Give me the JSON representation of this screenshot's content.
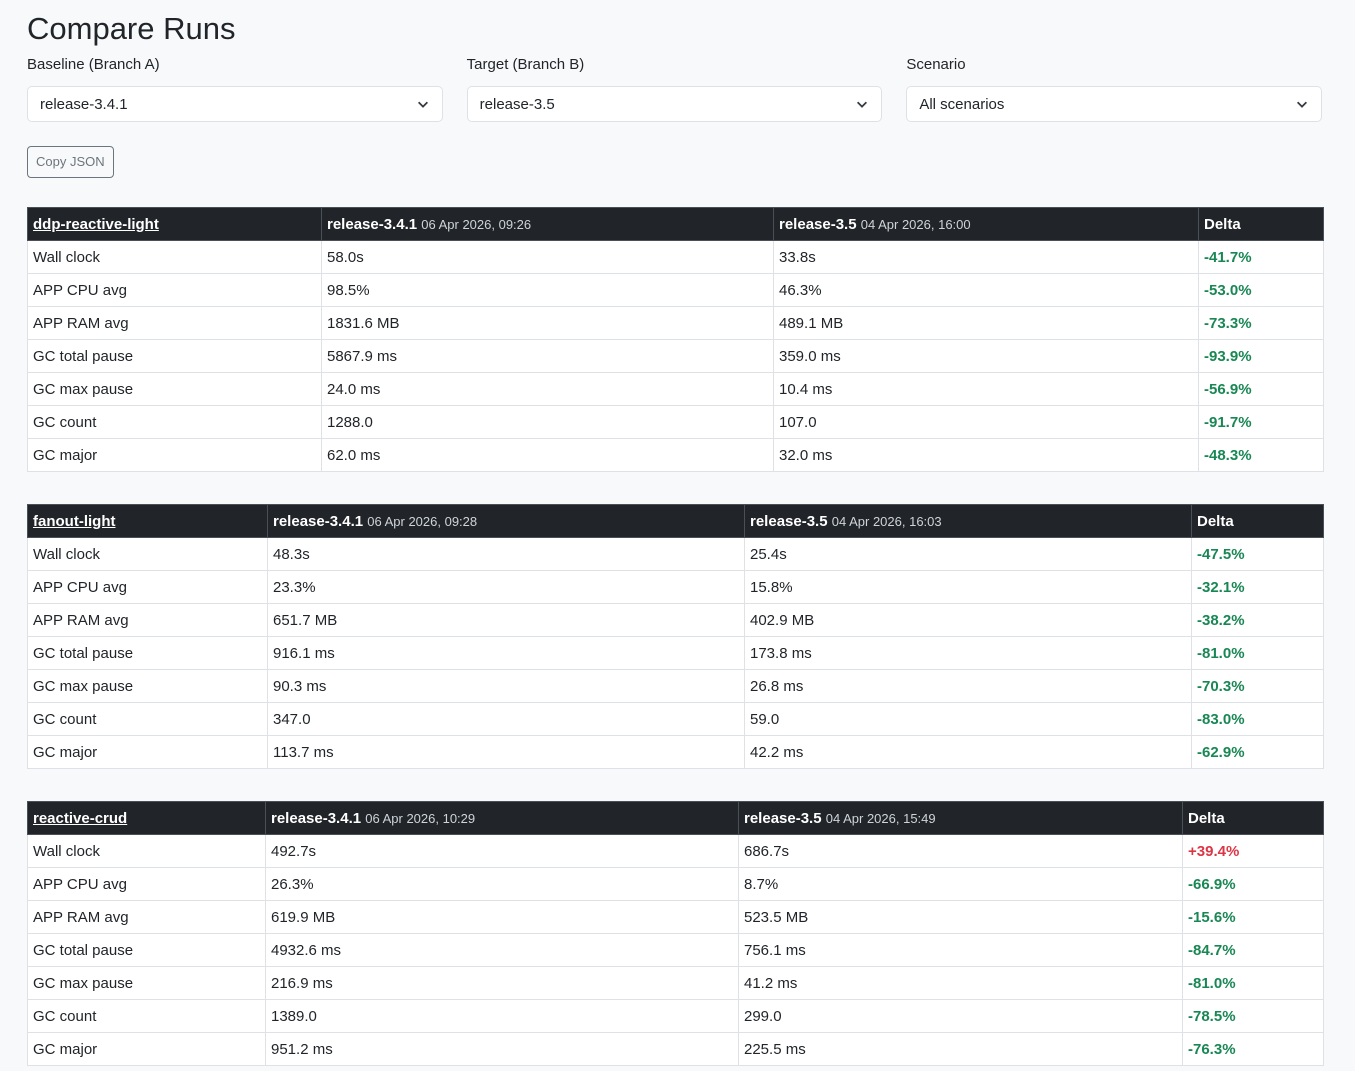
{
  "title": "Compare Runs",
  "filters": [
    {
      "label": "Baseline (Branch A)",
      "value": "release-3.4.1"
    },
    {
      "label": "Target (Branch B)",
      "value": "release-3.5"
    },
    {
      "label": "Scenario",
      "value": "All scenarios"
    }
  ],
  "copy_json_label": "Copy JSON",
  "delta_header": "Delta",
  "colors": {
    "good": "#198754",
    "bad": "#dc3545",
    "header_bg": "#212529"
  },
  "tables": [
    {
      "scenario": "ddp-reactive-light",
      "a_branch": "release-3.4.1",
      "a_time": "06 Apr 2026, 09:26",
      "b_branch": "release-3.5",
      "b_time": "04 Apr 2026, 16:00",
      "rows": [
        [
          "Wall clock",
          "58.0s",
          "33.8s",
          "-41.7%"
        ],
        [
          "APP CPU avg",
          "98.5%",
          "46.3%",
          "-53.0%"
        ],
        [
          "APP RAM avg",
          "1831.6 MB",
          "489.1 MB",
          "-73.3%"
        ],
        [
          "GC total pause",
          "5867.9 ms",
          "359.0 ms",
          "-93.9%"
        ],
        [
          "GC max pause",
          "24.0 ms",
          "10.4 ms",
          "-56.9%"
        ],
        [
          "GC count",
          "1288.0",
          "107.0",
          "-91.7%"
        ],
        [
          "GC major",
          "62.0 ms",
          "32.0 ms",
          "-48.3%"
        ]
      ]
    },
    {
      "scenario": "fanout-light",
      "a_branch": "release-3.4.1",
      "a_time": "06 Apr 2026, 09:28",
      "b_branch": "release-3.5",
      "b_time": "04 Apr 2026, 16:03",
      "rows": [
        [
          "Wall clock",
          "48.3s",
          "25.4s",
          "-47.5%"
        ],
        [
          "APP CPU avg",
          "23.3%",
          "15.8%",
          "-32.1%"
        ],
        [
          "APP RAM avg",
          "651.7 MB",
          "402.9 MB",
          "-38.2%"
        ],
        [
          "GC total pause",
          "916.1 ms",
          "173.8 ms",
          "-81.0%"
        ],
        [
          "GC max pause",
          "90.3 ms",
          "26.8 ms",
          "-70.3%"
        ],
        [
          "GC count",
          "347.0",
          "59.0",
          "-83.0%"
        ],
        [
          "GC major",
          "113.7 ms",
          "42.2 ms",
          "-62.9%"
        ]
      ]
    },
    {
      "scenario": "reactive-crud",
      "a_branch": "release-3.4.1",
      "a_time": "06 Apr 2026, 10:29",
      "b_branch": "release-3.5",
      "b_time": "04 Apr 2026, 15:49",
      "rows": [
        [
          "Wall clock",
          "492.7s",
          "686.7s",
          "+39.4%"
        ],
        [
          "APP CPU avg",
          "26.3%",
          "8.7%",
          "-66.9%"
        ],
        [
          "APP RAM avg",
          "619.9 MB",
          "523.5 MB",
          "-15.6%"
        ],
        [
          "GC total pause",
          "4932.6 ms",
          "756.1 ms",
          "-84.7%"
        ],
        [
          "GC max pause",
          "216.9 ms",
          "41.2 ms",
          "-81.0%"
        ],
        [
          "GC count",
          "1389.0",
          "299.0",
          "-78.5%"
        ],
        [
          "GC major",
          "951.2 ms",
          "225.5 ms",
          "-76.3%"
        ]
      ]
    }
  ]
}
